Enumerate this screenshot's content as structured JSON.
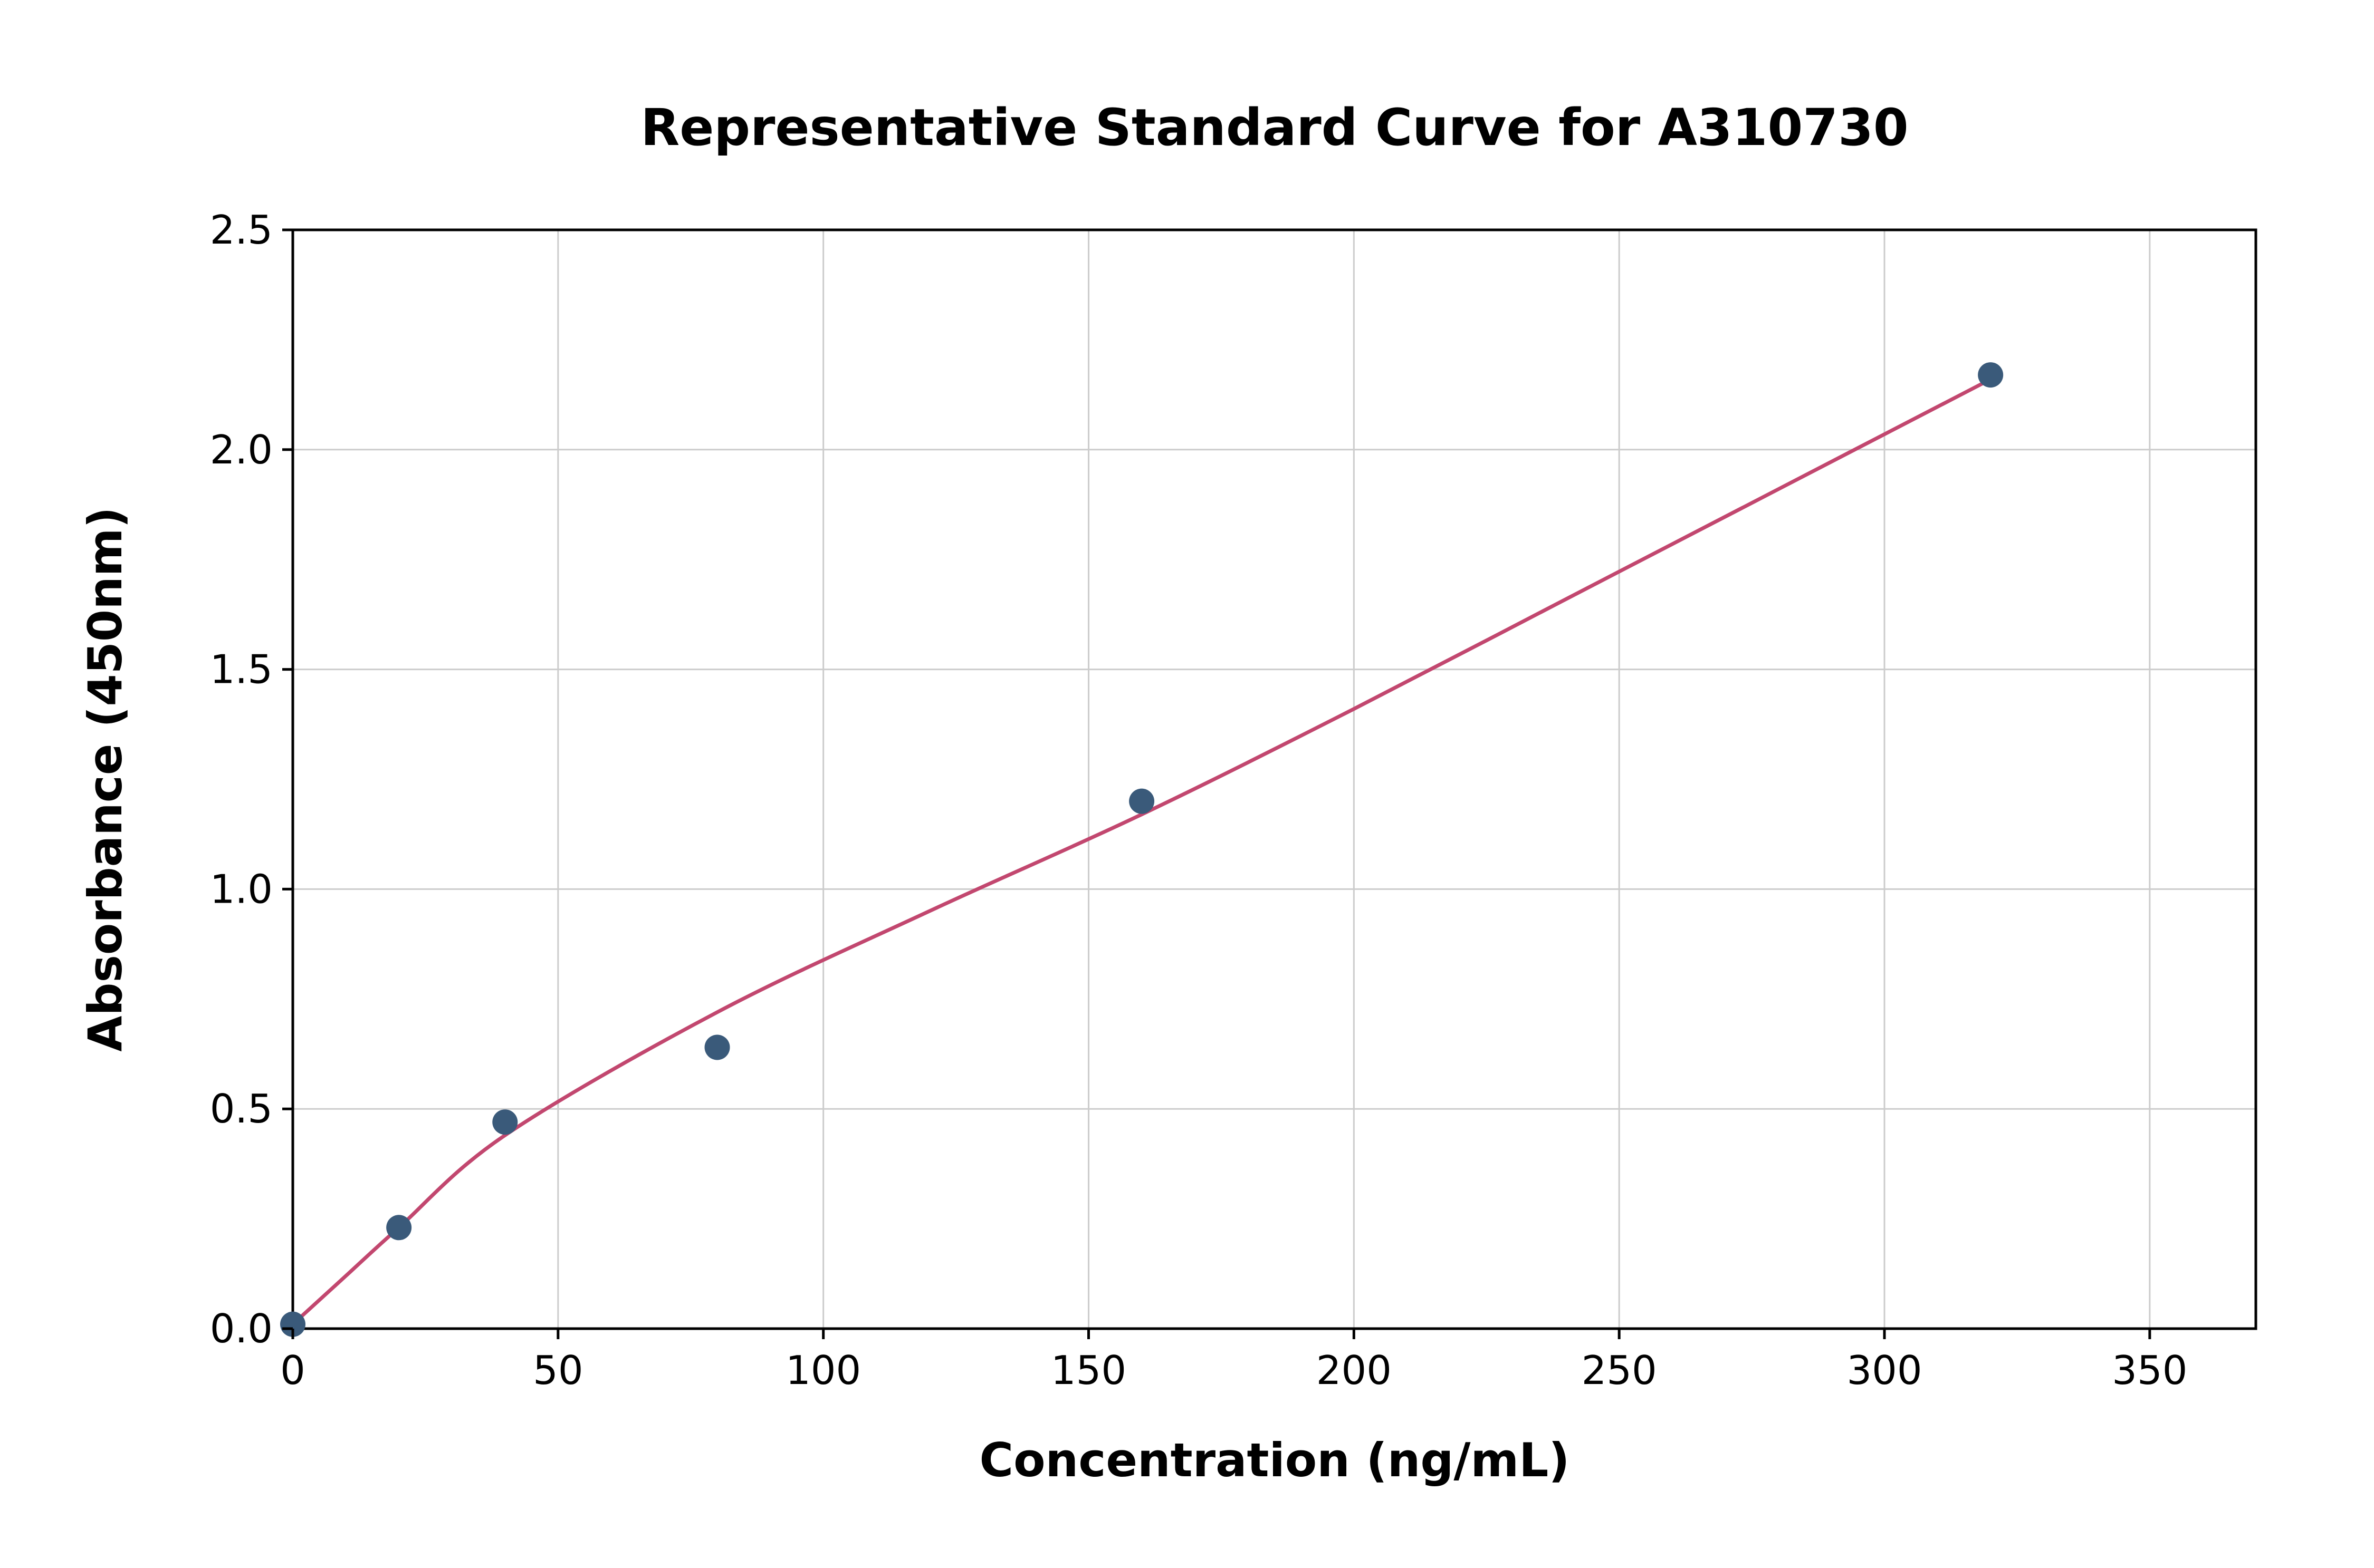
{
  "chart_data": {
    "type": "scatter",
    "title": "Representative Standard Curve for A310730",
    "xlabel": "Concentration (ng/mL)",
    "ylabel": "Absorbance (450nm)",
    "xlim": [
      0,
      370
    ],
    "ylim": [
      0,
      2.5
    ],
    "x_ticks": [
      0,
      50,
      100,
      150,
      200,
      250,
      300,
      350
    ],
    "x_tick_labels": [
      "0",
      "50",
      "100",
      "150",
      "200",
      "250",
      "300",
      "350"
    ],
    "y_ticks": [
      0,
      0.5,
      1.0,
      1.5,
      2.0,
      2.5
    ],
    "y_tick_labels": [
      "0.0",
      "0.5",
      "1.0",
      "1.5",
      "2.0",
      "2.5"
    ],
    "grid": true,
    "grid_color": "#cccccc",
    "spine_color": "#000000",
    "legend": "none",
    "series": [
      {
        "name": "standards",
        "type": "scatter",
        "color": "#3a5a7a",
        "x": [
          0,
          20,
          40,
          80,
          160,
          320
        ],
        "y": [
          0.01,
          0.23,
          0.47,
          0.64,
          1.2,
          2.17
        ]
      },
      {
        "name": "fit-curve",
        "type": "line",
        "color": "#c2476f",
        "x": [
          0,
          10,
          20,
          40,
          80,
          120,
          160,
          200,
          240,
          280,
          320
        ],
        "y": [
          0.01,
          0.12,
          0.23,
          0.44,
          0.72,
          0.95,
          1.17,
          1.41,
          1.66,
          1.91,
          2.16
        ]
      }
    ]
  }
}
